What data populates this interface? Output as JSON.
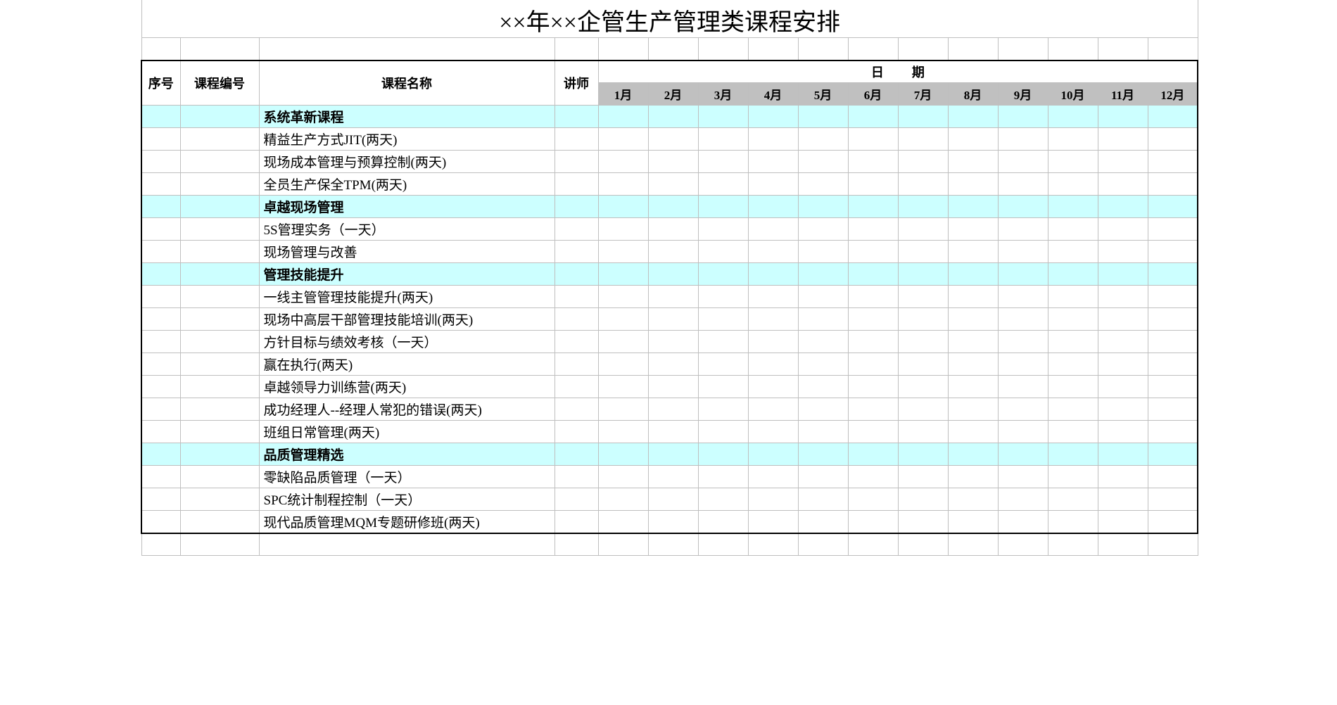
{
  "title": "××年××企管生产管理类课程安排",
  "headers": {
    "seq": "序号",
    "code": "课程编号",
    "name": "课程名称",
    "instructor": "讲师",
    "dateGroup": "日期",
    "months": [
      "1月",
      "2月",
      "3月",
      "4月",
      "5月",
      "6月",
      "7月",
      "8月",
      "9月",
      "10月",
      "11月",
      "12月"
    ]
  },
  "colors": {
    "categoryBg": "#ccffff",
    "monthHeaderBg": "#c0c0c0",
    "gridLine": "#bfbfbf",
    "tableBorder": "#000000",
    "background": "#ffffff"
  },
  "rows": [
    {
      "type": "category",
      "name": "系统革新课程"
    },
    {
      "type": "course",
      "name": "精益生产方式JIT(两天)"
    },
    {
      "type": "course",
      "name": "现场成本管理与预算控制(两天)"
    },
    {
      "type": "course",
      "name": "全员生产保全TPM(两天)"
    },
    {
      "type": "category",
      "name": "卓越现场管理"
    },
    {
      "type": "course",
      "name": "5S管理实务（一天）"
    },
    {
      "type": "course",
      "name": "现场管理与改善"
    },
    {
      "type": "category",
      "name": "管理技能提升"
    },
    {
      "type": "course",
      "name": "一线主管管理技能提升(两天)"
    },
    {
      "type": "course",
      "name": "现场中高层干部管理技能培训(两天)"
    },
    {
      "type": "course",
      "name": "方针目标与绩效考核（一天）"
    },
    {
      "type": "course",
      "name": "赢在执行(两天)"
    },
    {
      "type": "course",
      "name": "卓越领导力训练营(两天)"
    },
    {
      "type": "course",
      "name": "成功经理人--经理人常犯的错误(两天)"
    },
    {
      "type": "course",
      "name": "班组日常管理(两天)"
    },
    {
      "type": "category",
      "name": "品质管理精选"
    },
    {
      "type": "course",
      "name": "零缺陷品质管理（一天）"
    },
    {
      "type": "course",
      "name": "SPC统计制程控制（一天）"
    },
    {
      "type": "course",
      "name": "现代品质管理MQM专题研修班(两天)"
    }
  ]
}
